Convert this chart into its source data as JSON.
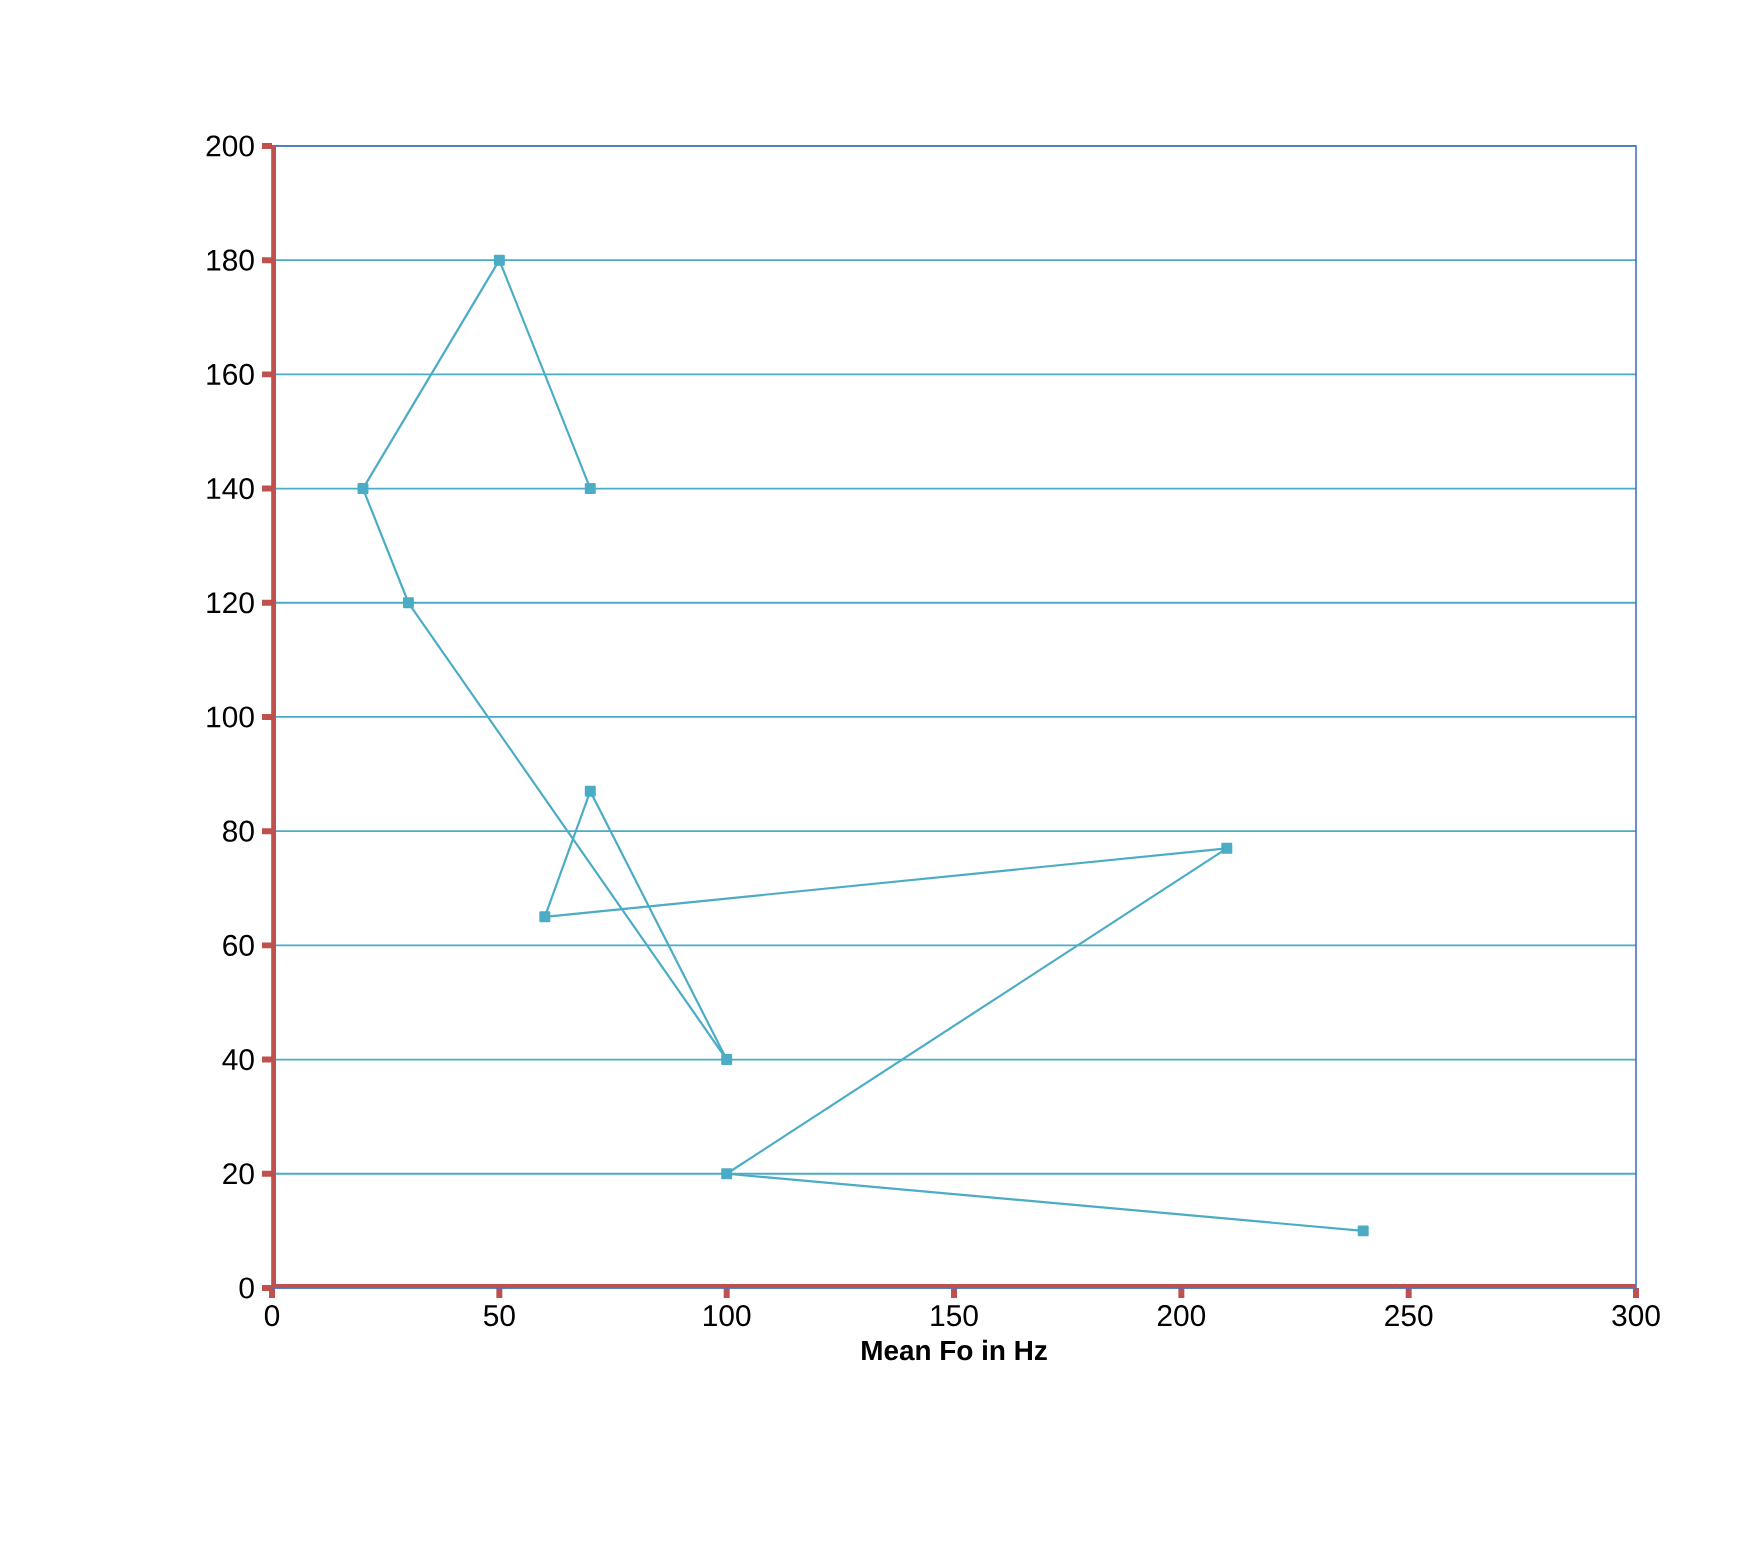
{
  "chart_data": {
    "type": "line",
    "xlabel": "Mean Fo in Hz",
    "x": [
      70,
      50,
      20,
      30,
      100,
      70,
      60,
      210,
      100,
      240
    ],
    "series": [
      {
        "color": "#4bacc6",
        "values": [
          140,
          180,
          140,
          120,
          40,
          87,
          65,
          77,
          20,
          10
        ]
      }
    ],
    "xlim": [
      0,
      300
    ],
    "xticks": [
      0,
      50,
      100,
      150,
      200,
      250,
      300
    ],
    "ylim": [
      0,
      200
    ],
    "yticks": [
      0,
      20,
      40,
      60,
      80,
      100,
      120,
      140,
      160,
      180,
      200
    ],
    "grid": "y",
    "marker": "square",
    "line_style": "solid"
  }
}
